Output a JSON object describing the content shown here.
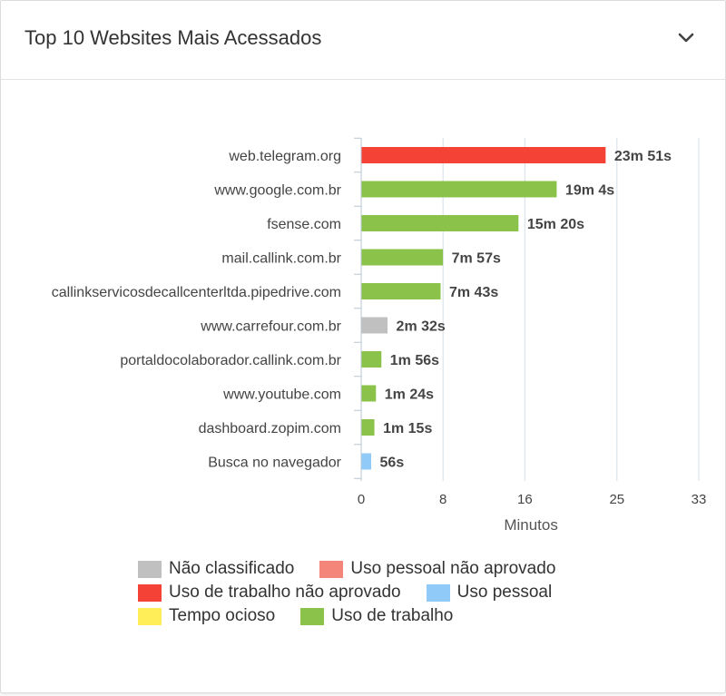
{
  "header": {
    "title": "Top 10 Websites Mais Acessados",
    "collapse_icon": "chevron-down-icon"
  },
  "chart_data": {
    "type": "bar",
    "orientation": "horizontal",
    "categories": [
      "web.telegram.org",
      "www.google.com.br",
      "fsense.com",
      "mail.callink.com.br",
      "callinkservicosdecallcenterltda.pipedrive.com",
      "www.carrefour.com.br",
      "portaldocolaborador.callink.com.br",
      "www.youtube.com",
      "dashboard.zopim.com",
      "Busca no navegador"
    ],
    "values": [
      23.85,
      19.0667,
      15.3333,
      7.95,
      7.7167,
      2.5333,
      1.9333,
      1.4,
      1.25,
      0.9333
    ],
    "value_labels": [
      "23m 51s",
      "19m 4s",
      "15m 20s",
      "7m 57s",
      "7m 43s",
      "2m 32s",
      "1m 56s",
      "1m 24s",
      "1m 15s",
      "56s"
    ],
    "bar_categories": [
      "Uso de trabalho não aprovado",
      "Uso de trabalho",
      "Uso de trabalho",
      "Uso de trabalho",
      "Uso de trabalho",
      "Não classificado",
      "Uso de trabalho",
      "Uso de trabalho",
      "Uso de trabalho",
      "Uso pessoal"
    ],
    "xlabel": "Minutos",
    "xlim": [
      0,
      33
    ],
    "xticks": [
      0,
      8,
      16,
      25,
      33
    ],
    "grid": "vertical",
    "legend_placement": "bottom",
    "legend": [
      [
        {
          "label": "Não classificado",
          "color": "#c0c0c0"
        },
        {
          "label": "Uso pessoal não aprovado",
          "color": "#f4857a"
        }
      ],
      [
        {
          "label": "Uso de trabalho não aprovado",
          "color": "#f44336"
        },
        {
          "label": "Uso pessoal",
          "color": "#90caf9"
        }
      ],
      [
        {
          "label": "Tempo ocioso",
          "color": "#ffee58"
        },
        {
          "label": "Uso de trabalho",
          "color": "#8bc34a"
        }
      ]
    ]
  }
}
